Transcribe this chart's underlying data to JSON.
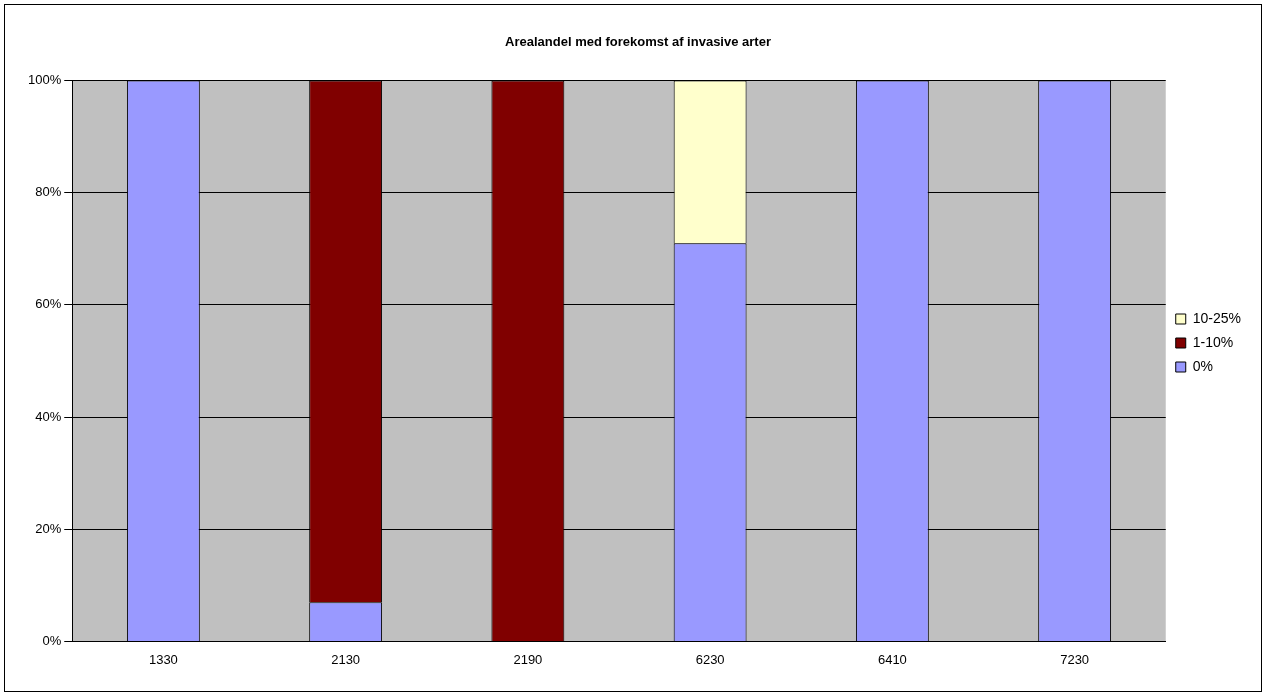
{
  "chart_data": {
    "type": "bar",
    "title": "Arealandel med forekomst af invasive arter",
    "categories": [
      "1330",
      "2130",
      "2190",
      "6230",
      "6410",
      "7230"
    ],
    "stacked": true,
    "series": [
      {
        "name": "0%",
        "color": "#9999ff",
        "values": [
          100,
          7,
          0,
          71,
          100,
          100
        ]
      },
      {
        "name": "1-10%",
        "color": "#800000",
        "values": [
          0,
          93,
          100,
          0,
          0,
          0
        ]
      },
      {
        "name": "10-25%",
        "color": "#ffffcc",
        "values": [
          0,
          0,
          0,
          29,
          0,
          0
        ]
      }
    ],
    "ylim": [
      0,
      100
    ],
    "yticks": [
      {
        "value": 0,
        "label": "0%"
      },
      {
        "value": 20,
        "label": "20%"
      },
      {
        "value": 40,
        "label": "40%"
      },
      {
        "value": 60,
        "label": "60%"
      },
      {
        "value": 80,
        "label": "80%"
      },
      {
        "value": 100,
        "label": "100%"
      }
    ],
    "grid": "y",
    "legend": "right"
  }
}
